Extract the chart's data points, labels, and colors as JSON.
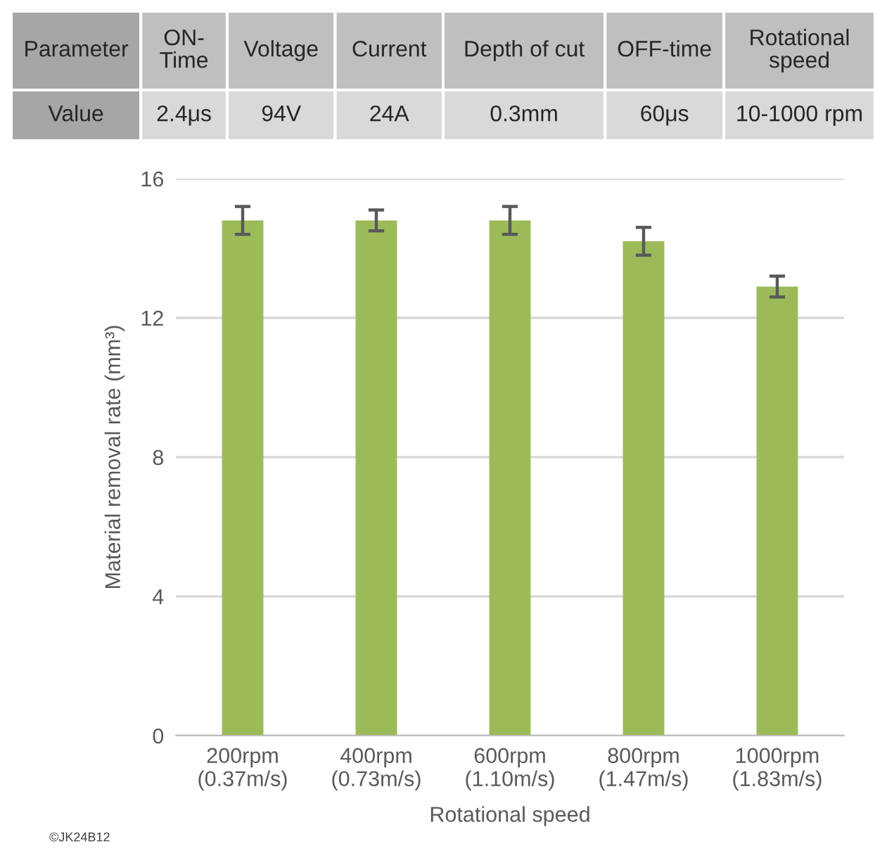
{
  "chart_data": {
    "type": "bar",
    "categories": [
      "200rpm\n(0.37m/s)",
      "400rpm\n(0.73m/s)",
      "600rpm\n(1.10m/s)",
      "800rpm\n(1.47m/s)",
      "1000rpm\n(1.83m/s)"
    ],
    "values": [
      14.8,
      14.8,
      14.8,
      14.2,
      12.9
    ],
    "errors": [
      0.4,
      0.3,
      0.4,
      0.4,
      0.3
    ],
    "color": "#9bbb59",
    "xlabel": "Rotational speed",
    "ylabel": "Material removal rate (mm³)",
    "ylim": [
      0,
      16
    ],
    "yticks": [
      0,
      4,
      8,
      12,
      16
    ],
    "grid": "y",
    "annotations": [
      "Parameter",
      "ON-\nTime",
      "Voltage",
      "Current",
      "Depth of cut",
      "OFF-time",
      "Rotational\nspeed",
      "Value",
      "2.4μs",
      "94V",
      "24A",
      "0.3mm",
      "60μs",
      "10-1000 rpm",
      "©JK24B12"
    ]
  }
}
